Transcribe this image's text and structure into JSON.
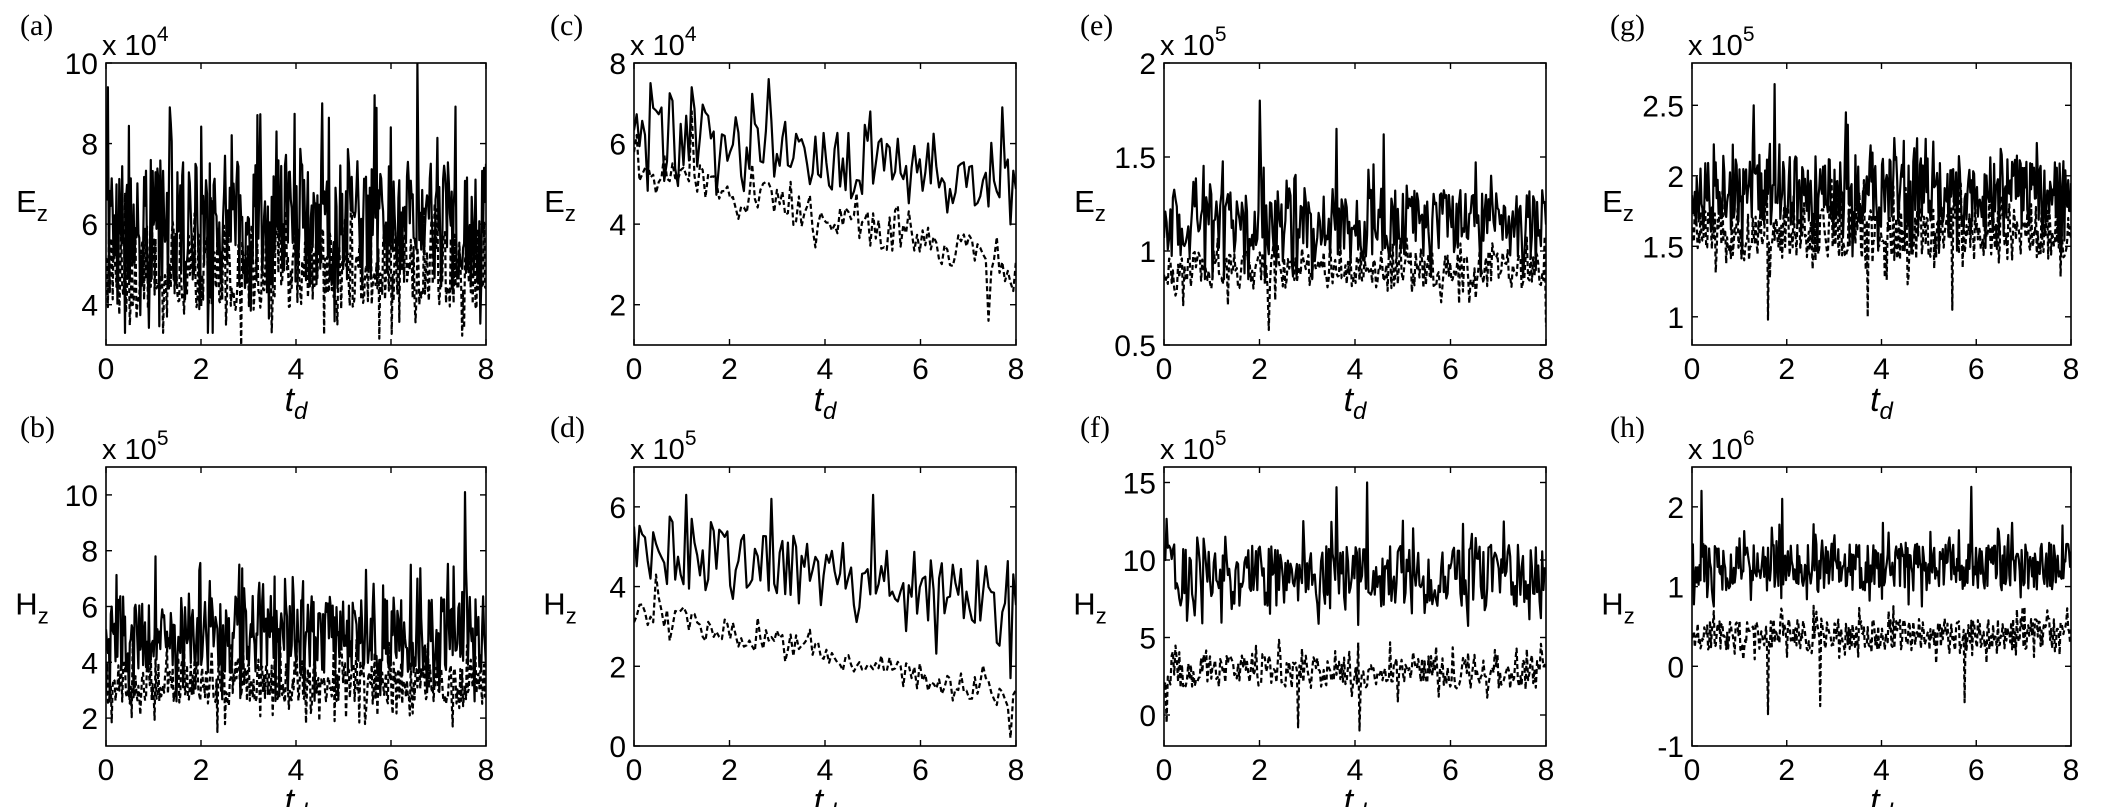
{
  "chart_data": [
    {
      "type": "line",
      "panel": "(a)",
      "ylabel_main": "E",
      "ylabel_sub": "z",
      "xlabel_main": "t",
      "xlabel_sub": "d",
      "exponent_prefix": "x 10",
      "exponent_power": "4",
      "xlim": [
        0,
        8
      ],
      "ylim": [
        3,
        10
      ],
      "xticks": [
        "0",
        "2",
        "4",
        "6",
        "8"
      ],
      "yticks": [
        "4",
        "6",
        "8",
        "10"
      ],
      "ytick_values": [
        4,
        6,
        8,
        10
      ],
      "npoints": 400,
      "duration": 8,
      "series": [
        {
          "style": "solid",
          "base": [
            6.0,
            6.0
          ],
          "amp": 1.6,
          "lo": 3.3,
          "hi": 10,
          "peaks": [
            [
              0.05,
              9.4
            ],
            [
              6.55,
              10.0
            ],
            [
              5.65,
              9.2
            ],
            [
              4.55,
              9.0
            ],
            [
              1.35,
              8.9
            ]
          ]
        },
        {
          "style": "dashed",
          "base": [
            4.9,
            4.9
          ],
          "amp": 1.0,
          "lo": 3.0,
          "hi": 7.0,
          "peaks": [
            [
              2.85,
              3.0
            ],
            [
              1.2,
              3.3
            ]
          ]
        }
      ]
    },
    {
      "type": "line",
      "panel": "(b)",
      "ylabel_main": "H",
      "ylabel_sub": "z",
      "xlabel_main": "t",
      "xlabel_sub": "d",
      "exponent_prefix": "x 10",
      "exponent_power": "5",
      "xlim": [
        0,
        8
      ],
      "ylim": [
        1,
        11
      ],
      "xticks": [
        "0",
        "2",
        "4",
        "6",
        "8"
      ],
      "yticks": [
        "2",
        "4",
        "6",
        "8",
        "10"
      ],
      "ytick_values": [
        2,
        4,
        6,
        8,
        10
      ],
      "npoints": 400,
      "duration": 8,
      "series": [
        {
          "style": "solid",
          "base": [
            5.0,
            5.0
          ],
          "amp": 1.4,
          "lo": 2.6,
          "hi": 10.2,
          "peaks": [
            [
              7.55,
              10.1
            ],
            [
              1.05,
              7.8
            ],
            [
              2.8,
              7.5
            ]
          ]
        },
        {
          "style": "dashed",
          "base": [
            3.3,
            3.3
          ],
          "amp": 0.8,
          "lo": 1.5,
          "hi": 5.2,
          "peaks": [
            [
              2.35,
              1.5
            ],
            [
              7.3,
              1.7
            ]
          ]
        }
      ]
    },
    {
      "type": "line",
      "panel": "(c)",
      "ylabel_main": "E",
      "ylabel_sub": "z",
      "xlabel_main": "t",
      "xlabel_sub": "d",
      "exponent_prefix": "x 10",
      "exponent_power": "4",
      "xlim": [
        0,
        8
      ],
      "ylim": [
        1,
        8
      ],
      "xticks": [
        "0",
        "2",
        "4",
        "6",
        "8"
      ],
      "yticks": [
        "2",
        "4",
        "6",
        "8"
      ],
      "ytick_values": [
        2,
        4,
        6,
        8
      ],
      "npoints": 140,
      "duration": 8,
      "series": [
        {
          "style": "solid",
          "base": [
            6.3,
            4.9
          ],
          "amp": 0.8,
          "lo": 3.0,
          "hi": 7.6,
          "peaks": [
            [
              0.35,
              7.5
            ],
            [
              2.8,
              7.6
            ],
            [
              1.2,
              7.4
            ],
            [
              7.7,
              6.9
            ]
          ]
        },
        {
          "style": "dashed",
          "base": [
            5.5,
            2.9
          ],
          "amp": 0.45,
          "lo": 1.6,
          "hi": 6.8,
          "peaks": [
            [
              1.2,
              6.8
            ],
            [
              7.4,
              1.6
            ]
          ]
        }
      ]
    },
    {
      "type": "line",
      "panel": "(d)",
      "ylabel_main": "H",
      "ylabel_sub": "z",
      "xlabel_main": "t",
      "xlabel_sub": "d",
      "exponent_prefix": "x 10",
      "exponent_power": "5",
      "xlim": [
        0,
        8
      ],
      "ylim": [
        0,
        7
      ],
      "xticks": [
        "0",
        "2",
        "4",
        "6",
        "8"
      ],
      "yticks": [
        "0",
        "2",
        "4",
        "6"
      ],
      "ytick_values": [
        0,
        2,
        4,
        6
      ],
      "npoints": 140,
      "duration": 8,
      "series": [
        {
          "style": "solid",
          "base": [
            5.0,
            3.7
          ],
          "amp": 0.9,
          "lo": 1.7,
          "hi": 6.3,
          "peaks": [
            [
              2.85,
              6.2
            ],
            [
              5.0,
              6.3
            ],
            [
              7.9,
              1.7
            ]
          ]
        },
        {
          "style": "dashed",
          "base": [
            3.4,
            1.2
          ],
          "amp": 0.35,
          "lo": 0.2,
          "hi": 4.3,
          "peaks": [
            [
              7.9,
              0.2
            ],
            [
              0.45,
              4.3
            ]
          ]
        }
      ]
    },
    {
      "type": "line",
      "panel": "(e)",
      "ylabel_main": "E",
      "ylabel_sub": "z",
      "xlabel_main": "t",
      "xlabel_sub": "d",
      "exponent_prefix": "x 10",
      "exponent_power": "5",
      "xlim": [
        0,
        8
      ],
      "ylim": [
        0.5,
        2
      ],
      "xticks": [
        "0",
        "2",
        "4",
        "6",
        "8"
      ],
      "yticks": [
        "0.5",
        "1",
        "1.5",
        "2"
      ],
      "ytick_values": [
        0.5,
        1,
        1.5,
        2
      ],
      "npoints": 300,
      "duration": 8,
      "series": [
        {
          "style": "solid",
          "base": [
            1.15,
            1.15
          ],
          "amp": 0.18,
          "lo": 0.85,
          "hi": 1.8,
          "peaks": [
            [
              2.0,
              1.8
            ],
            [
              3.6,
              1.65
            ],
            [
              4.6,
              1.62
            ]
          ]
        },
        {
          "style": "dashed",
          "base": [
            0.9,
            0.9
          ],
          "amp": 0.1,
          "lo": 0.58,
          "hi": 1.1,
          "peaks": [
            [
              2.2,
              0.58
            ],
            [
              8.0,
              0.6
            ]
          ]
        }
      ]
    },
    {
      "type": "line",
      "panel": "(f)",
      "ylabel_main": "H",
      "ylabel_sub": "z",
      "xlabel_main": "t",
      "xlabel_sub": "d",
      "exponent_prefix": "x 10",
      "exponent_power": "5",
      "xlim": [
        0,
        8
      ],
      "ylim": [
        -2,
        16
      ],
      "xticks": [
        "0",
        "2",
        "4",
        "6",
        "8"
      ],
      "yticks": [
        "0",
        "5",
        "10",
        "15"
      ],
      "ytick_values": [
        0,
        5,
        10,
        15
      ],
      "npoints": 300,
      "duration": 8,
      "series": [
        {
          "style": "solid",
          "base": [
            9.0,
            9.0
          ],
          "amp": 2.0,
          "lo": 4.5,
          "hi": 15.0,
          "peaks": [
            [
              4.25,
              15.0
            ],
            [
              3.6,
              14.7
            ]
          ]
        },
        {
          "style": "dashed",
          "base": [
            2.8,
            2.8
          ],
          "amp": 1.1,
          "lo": -1.0,
          "hi": 5.5,
          "peaks": [
            [
              4.1,
              -1.0
            ],
            [
              2.8,
              -0.8
            ],
            [
              0.05,
              -0.5
            ]
          ]
        }
      ]
    },
    {
      "type": "line",
      "panel": "(g)",
      "ylabel_main": "E",
      "ylabel_sub": "z",
      "xlabel_main": "t",
      "xlabel_sub": "d",
      "exponent_prefix": "x 10",
      "exponent_power": "5",
      "xlim": [
        0,
        8
      ],
      "ylim": [
        0.8,
        2.8
      ],
      "xticks": [
        "0",
        "2",
        "4",
        "6",
        "8"
      ],
      "yticks": [
        "1",
        "1.5",
        "2",
        "2.5"
      ],
      "ytick_values": [
        1,
        1.5,
        2,
        2.5
      ],
      "npoints": 400,
      "duration": 8,
      "series": [
        {
          "style": "solid",
          "base": [
            1.9,
            1.9
          ],
          "amp": 0.25,
          "lo": 1.4,
          "hi": 2.65,
          "peaks": [
            [
              1.75,
              2.65
            ],
            [
              1.3,
              2.5
            ],
            [
              3.25,
              2.45
            ]
          ]
        },
        {
          "style": "dashed",
          "base": [
            1.6,
            1.6
          ],
          "amp": 0.2,
          "lo": 0.98,
          "hi": 2.0,
          "peaks": [
            [
              1.6,
              0.98
            ],
            [
              3.7,
              1.0
            ],
            [
              5.5,
              1.05
            ]
          ]
        }
      ]
    },
    {
      "type": "line",
      "panel": "(h)",
      "ylabel_main": "H",
      "ylabel_sub": "z",
      "xlabel_main": "t",
      "xlabel_sub": "d",
      "exponent_prefix": "x 10",
      "exponent_power": "6",
      "xlim": [
        0,
        8
      ],
      "ylim": [
        -1,
        2.5
      ],
      "xticks": [
        "0",
        "2",
        "4",
        "6",
        "8"
      ],
      "yticks": [
        "-1",
        "0",
        "1",
        "2"
      ],
      "ytick_values": [
        -1,
        0,
        1,
        2
      ],
      "npoints": 400,
      "duration": 8,
      "series": [
        {
          "style": "solid",
          "base": [
            1.25,
            1.25
          ],
          "amp": 0.3,
          "lo": 0.75,
          "hi": 2.25,
          "peaks": [
            [
              0.2,
              2.2
            ],
            [
              5.9,
              2.25
            ],
            [
              1.9,
              2.1
            ]
          ]
        },
        {
          "style": "dashed",
          "base": [
            0.4,
            0.4
          ],
          "amp": 0.2,
          "lo": -0.6,
          "hi": 0.85,
          "peaks": [
            [
              1.6,
              -0.6
            ],
            [
              2.7,
              -0.5
            ],
            [
              5.75,
              -0.45
            ]
          ]
        }
      ]
    }
  ]
}
